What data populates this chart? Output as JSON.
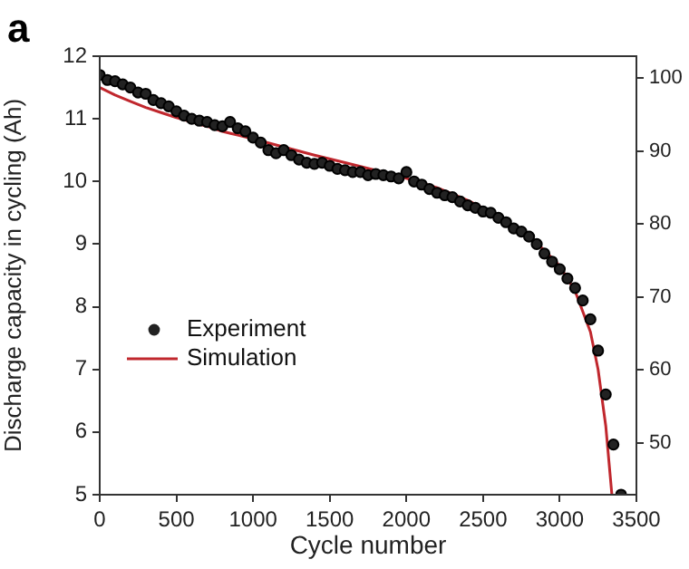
{
  "chart_data": {
    "type": "scatter",
    "xlabel": "Cycle number",
    "ylabel": "Discharge capacity in cycling (Ah)",
    "annotations": [
      "a"
    ],
    "xlim": [
      0,
      3500
    ],
    "xticks": [
      0,
      500,
      1000,
      1500,
      2000,
      2500,
      3000,
      3500
    ],
    "ylim": [
      5,
      12
    ],
    "yticks": [
      5,
      6,
      7,
      8,
      9,
      10,
      11,
      12
    ],
    "y2lim": [
      42.9,
      103
    ],
    "y2ticks": [
      50,
      60,
      70,
      80,
      90,
      100
    ],
    "grid": false,
    "legend": "left",
    "marker": "circle",
    "series": [
      {
        "name": "Experiment",
        "color": "#000000",
        "x": [
          0,
          50,
          100,
          150,
          200,
          250,
          300,
          350,
          400,
          450,
          500,
          550,
          600,
          650,
          700,
          750,
          800,
          850,
          900,
          950,
          1000,
          1050,
          1100,
          1150,
          1200,
          1250,
          1300,
          1350,
          1400,
          1450,
          1500,
          1550,
          1600,
          1650,
          1700,
          1750,
          1800,
          1850,
          1900,
          1950,
          2000,
          2050,
          2100,
          2150,
          2200,
          2250,
          2300,
          2350,
          2400,
          2450,
          2500,
          2550,
          2600,
          2650,
          2700,
          2750,
          2800,
          2850,
          2900,
          2950,
          3000,
          3050,
          3100,
          3150,
          3200,
          3250,
          3300,
          3350,
          3400
        ],
        "values": [
          11.7,
          11.62,
          11.6,
          11.55,
          11.5,
          11.42,
          11.4,
          11.3,
          11.25,
          11.2,
          11.12,
          11.05,
          11.0,
          10.97,
          10.95,
          10.9,
          10.88,
          10.95,
          10.85,
          10.8,
          10.7,
          10.62,
          10.5,
          10.45,
          10.5,
          10.42,
          10.35,
          10.3,
          10.28,
          10.3,
          10.25,
          10.2,
          10.18,
          10.15,
          10.15,
          10.1,
          10.12,
          10.1,
          10.08,
          10.05,
          10.15,
          10.0,
          9.95,
          9.88,
          9.82,
          9.78,
          9.75,
          9.68,
          9.62,
          9.58,
          9.52,
          9.5,
          9.42,
          9.35,
          9.25,
          9.2,
          9.12,
          9.0,
          8.85,
          8.72,
          8.6,
          8.45,
          8.3,
          8.1,
          7.8,
          7.3,
          6.6,
          5.8,
          5.0
        ]
      },
      {
        "name": "Simulation",
        "type": "line",
        "color": "#c0272d",
        "marker": "none",
        "x": [
          0,
          100,
          200,
          300,
          400,
          500,
          600,
          700,
          800,
          900,
          1000,
          1200,
          1400,
          1600,
          1800,
          2000,
          2200,
          2400,
          2600,
          2800,
          2900,
          3000,
          3100,
          3200,
          3250,
          3300,
          3340
        ],
        "values": [
          11.5,
          11.38,
          11.28,
          11.18,
          11.1,
          11.02,
          10.95,
          10.88,
          10.8,
          10.74,
          10.68,
          10.55,
          10.42,
          10.3,
          10.18,
          10.05,
          9.9,
          9.7,
          9.45,
          9.12,
          8.9,
          8.65,
          8.25,
          7.6,
          7.0,
          6.1,
          5.0
        ]
      }
    ]
  }
}
